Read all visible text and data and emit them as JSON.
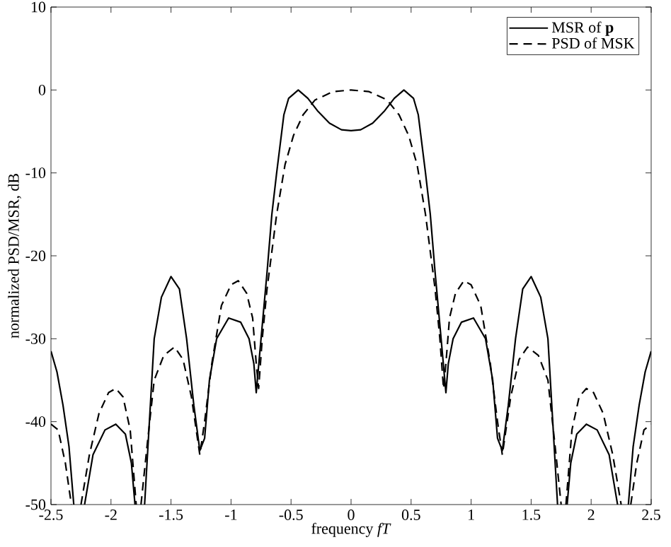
{
  "chart_data": {
    "type": "line",
    "xlabel": "frequency *fT*",
    "ylabel": "normalized PSD/MSR, dB",
    "xlim": [
      -2.5,
      2.5
    ],
    "ylim": [
      -50,
      10
    ],
    "xticks": [
      -2.5,
      -2,
      -1.5,
      -1,
      -0.5,
      0,
      0.5,
      1,
      1.5,
      2,
      2.5
    ],
    "yticks": [
      -50,
      -40,
      -30,
      -20,
      -10,
      0,
      10
    ],
    "grid": false,
    "legend": "top right",
    "series": [
      {
        "name": "MSR of **p**",
        "color": "#000000",
        "line_style": "solid",
        "x": [
          -2.5,
          -2.45,
          -2.4,
          -2.35,
          -2.31,
          -2.26,
          -2.22,
          -2.15,
          -2.05,
          -1.96,
          -1.88,
          -1.83,
          -1.8,
          -1.76,
          -1.72,
          -1.68,
          -1.64,
          -1.58,
          -1.5,
          -1.43,
          -1.37,
          -1.31,
          -1.26,
          -1.22,
          -1.18,
          -1.12,
          -1.02,
          -0.92,
          -0.85,
          -0.81,
          -0.79,
          -0.75,
          -0.7,
          -0.66,
          -0.62,
          -0.56,
          -0.52,
          -0.44,
          -0.36,
          -0.28,
          -0.18,
          -0.08,
          0,
          0.08,
          0.18,
          0.28,
          0.36,
          0.44,
          0.52,
          0.56,
          0.62,
          0.66,
          0.7,
          0.75,
          0.79,
          0.81,
          0.85,
          0.92,
          1.02,
          1.12,
          1.18,
          1.22,
          1.26,
          1.31,
          1.37,
          1.43,
          1.5,
          1.58,
          1.64,
          1.68,
          1.72,
          1.76,
          1.8,
          1.83,
          1.88,
          1.96,
          2.05,
          2.15,
          2.22,
          2.26,
          2.31,
          2.35,
          2.4,
          2.45,
          2.5
        ],
        "values": [
          -31.5,
          -34,
          -38,
          -43,
          -50,
          null,
          -50,
          -44,
          -41,
          -40.3,
          -41.5,
          -45,
          -50,
          null,
          -50,
          -40,
          -30,
          -25,
          -22.5,
          -24,
          -30,
          -38,
          -43.5,
          -42,
          -35,
          -30,
          -27.5,
          -28,
          -30,
          -33,
          -36.5,
          -30,
          -22,
          -15,
          -10,
          -3,
          -1,
          0,
          -1,
          -2.5,
          -4,
          -4.8,
          -4.9,
          -4.8,
          -4,
          -2.5,
          -1,
          0,
          -1,
          -3,
          -10,
          -15,
          -22,
          -30,
          -36.5,
          -33,
          -30,
          -28,
          -27.5,
          -30,
          -35,
          -42,
          -43.5,
          -38,
          -30,
          -24,
          -22.5,
          -25,
          -30,
          -40,
          -50,
          null,
          -50,
          -45,
          -41.5,
          -40.3,
          -41,
          -44,
          -50,
          null,
          -50,
          -43,
          -38,
          -34,
          -31.5
        ]
      },
      {
        "name": "PSD of MSK",
        "color": "#000000",
        "line_style": "dashed",
        "x": [
          -2.5,
          -2.44,
          -2.38,
          -2.33,
          -2.29,
          -2.25,
          -2.18,
          -2.1,
          -2.02,
          -1.96,
          -1.9,
          -1.84,
          -1.79,
          -1.77,
          -1.75,
          -1.7,
          -1.64,
          -1.56,
          -1.47,
          -1.4,
          -1.33,
          -1.28,
          -1.26,
          -1.22,
          -1.16,
          -1.08,
          -1,
          -0.94,
          -0.87,
          -0.82,
          -0.79,
          -0.77,
          -0.74,
          -0.7,
          -0.62,
          -0.55,
          -0.48,
          -0.4,
          -0.3,
          -0.15,
          0,
          0.15,
          0.3,
          0.4,
          0.48,
          0.55,
          0.62,
          0.7,
          0.74,
          0.77,
          0.79,
          0.82,
          0.87,
          0.94,
          1,
          1.08,
          1.16,
          1.22,
          1.26,
          1.28,
          1.33,
          1.4,
          1.47,
          1.56,
          1.64,
          1.7,
          1.75,
          1.77,
          1.79,
          1.84,
          1.9,
          1.96,
          2.02,
          2.1,
          2.18,
          2.25,
          2.29,
          2.33,
          2.38,
          2.44,
          2.5
        ],
        "values": [
          -40.3,
          -41,
          -45,
          -50,
          null,
          -50,
          -44,
          -39,
          -36.5,
          -36,
          -37,
          -41,
          -50,
          null,
          -50,
          -43,
          -35,
          -32,
          -31,
          -32.5,
          -37,
          -42,
          -44,
          -40,
          -33,
          -26,
          -23.5,
          -23,
          -24.5,
          -27.5,
          -33,
          -36,
          -30,
          -24,
          -15,
          -9,
          -5.5,
          -3,
          -1.2,
          -0.2,
          0,
          -0.2,
          -1.2,
          -3,
          -5.5,
          -9,
          -15,
          -24,
          -30,
          -36,
          -33,
          -27.5,
          -24.5,
          -23,
          -23.5,
          -26,
          -33,
          -40,
          -44,
          -42,
          -37,
          -32.5,
          -31,
          -32,
          -35,
          -43,
          -50,
          null,
          -50,
          -41,
          -37,
          -36,
          -36.5,
          -39,
          -44,
          -50,
          null,
          -50,
          -45,
          -41,
          -40.3
        ]
      }
    ]
  }
}
